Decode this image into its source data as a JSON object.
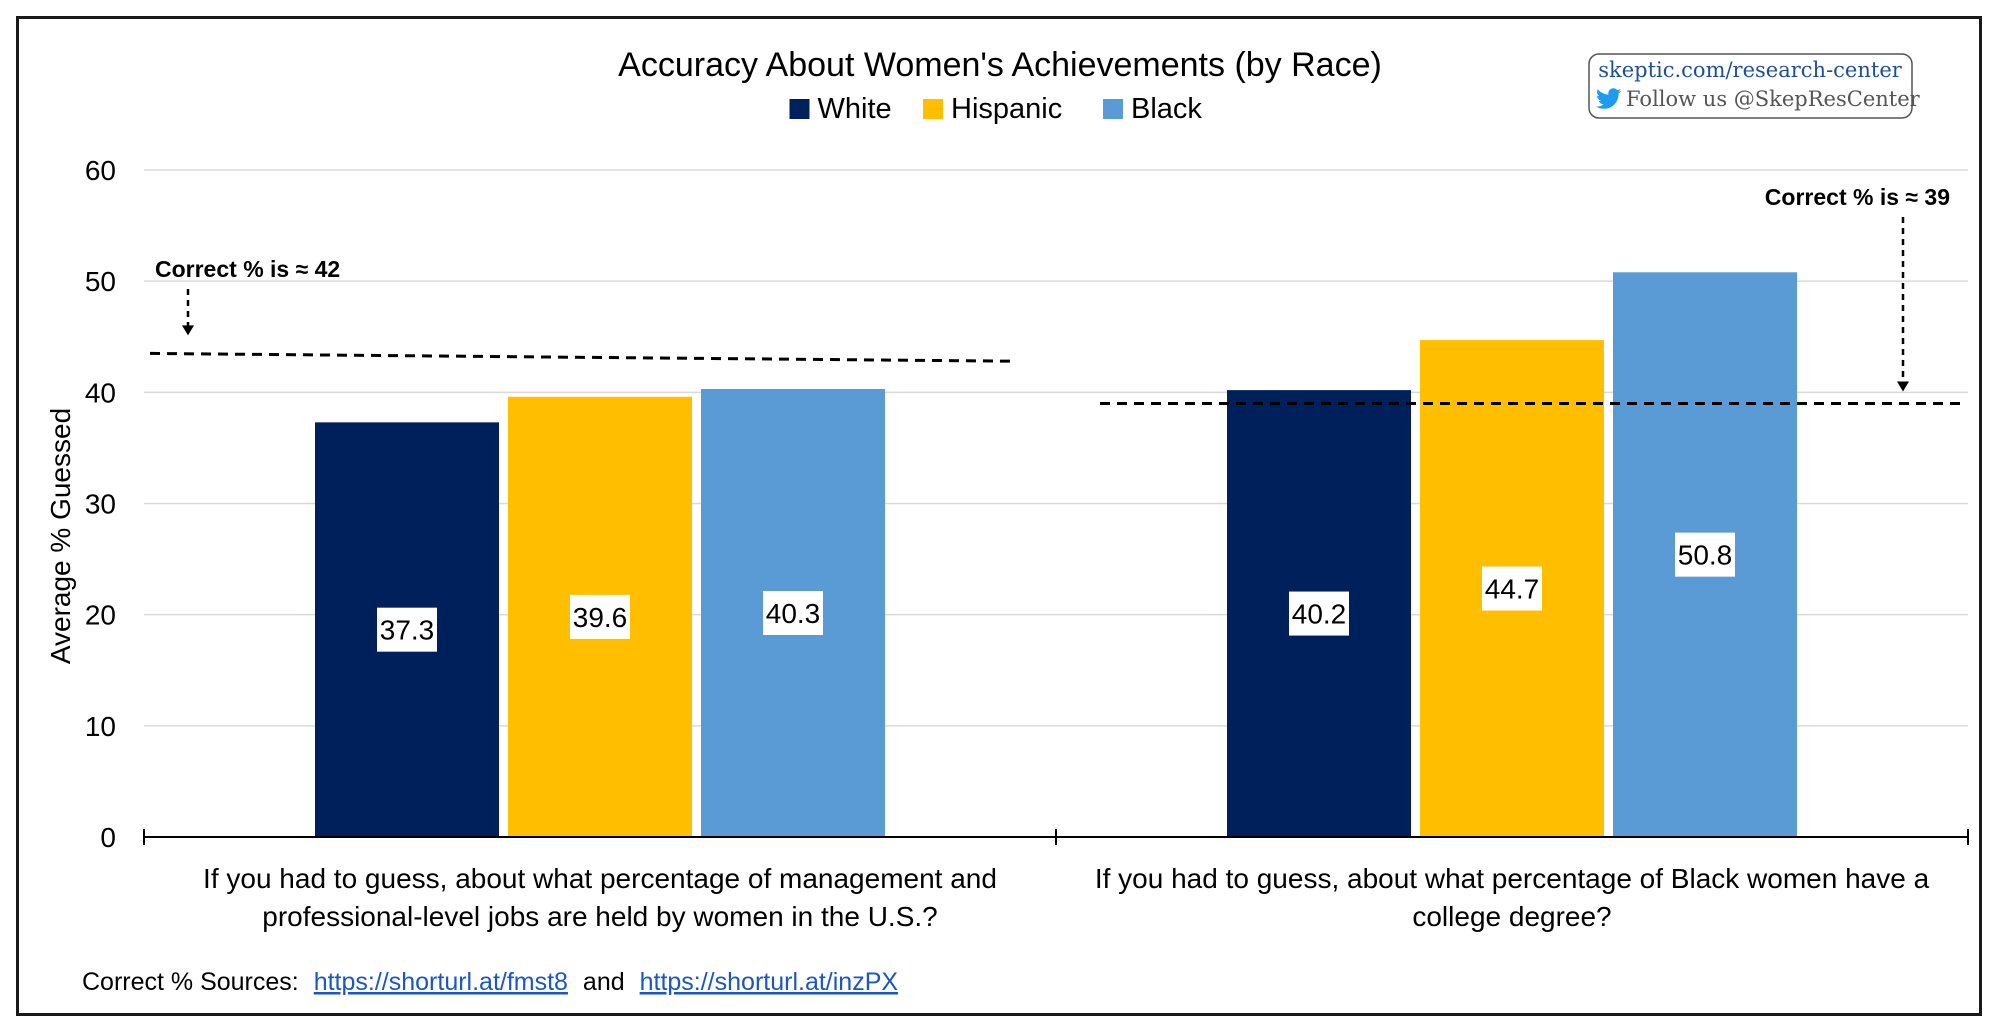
{
  "brand": {
    "site": "skeptic.com/research-center",
    "follow": "Follow us @SkepResCenter",
    "icon": "twitter-bird-icon"
  },
  "source_note": {
    "prefix": "Correct % Sources:",
    "link1": "https://shorturl.at/fmst8",
    "joiner": "and",
    "link2": "https://shorturl.at/inzPX"
  },
  "chart_data": {
    "type": "bar",
    "title": "Accuracy About Women's Achievements (by Race)",
    "ylabel": "Average % Guessed",
    "xlabel": "",
    "ylim": [
      0,
      60
    ],
    "yticks": [
      0,
      10,
      20,
      30,
      40,
      50,
      60
    ],
    "grid": true,
    "legend_position": "top-center",
    "categories": [
      [
        "If you had to guess, about what percentage of management and",
        "professional-level jobs are held by women in the U.S.?"
      ],
      [
        "If you had to guess, about what percentage of Black women have a",
        "college degree?"
      ]
    ],
    "series": [
      {
        "name": "White",
        "color": "#00205b",
        "values": [
          37.3,
          40.2
        ]
      },
      {
        "name": "Hispanic",
        "color": "#ffbf00",
        "values": [
          39.6,
          44.7
        ]
      },
      {
        "name": "Black",
        "color": "#5b9bd5",
        "values": [
          40.3,
          50.8
        ]
      }
    ],
    "annotations": [
      {
        "category": 0,
        "text": "Correct % is ≈ 42",
        "line_start": 43.5,
        "line_end": 42.8,
        "label_side": "left"
      },
      {
        "category": 1,
        "text": "Correct % is ≈ 39",
        "line_start": 39,
        "line_end": 39,
        "label_side": "right"
      }
    ]
  }
}
